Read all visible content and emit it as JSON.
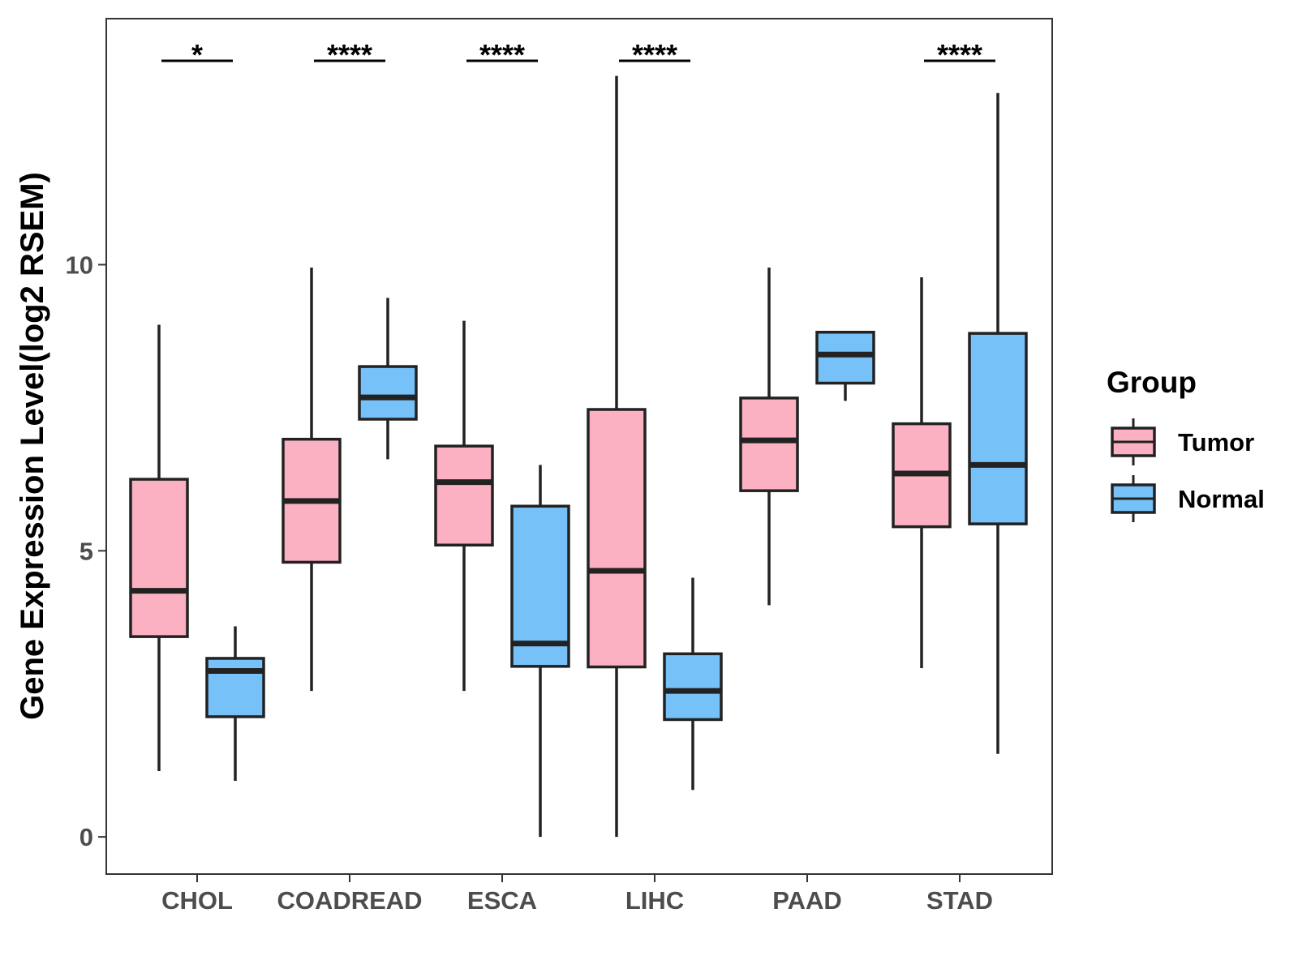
{
  "chart_data": {
    "type": "boxplot",
    "ylabel": "Gene Expression Level(log2 RSEM)",
    "xlabel": "",
    "ylim": [
      -0.65,
      14.3
    ],
    "yticks": [
      0,
      5,
      10
    ],
    "grid": false,
    "legend": {
      "title": "Group",
      "position": "right",
      "entries": [
        {
          "label": "Tumor",
          "color": "#fbb1c2"
        },
        {
          "label": "Normal",
          "color": "#76c1f8"
        }
      ]
    },
    "categories": [
      "CHOL",
      "COADREAD",
      "ESCA",
      "LIHC",
      "PAAD",
      "STAD"
    ],
    "series": [
      {
        "name": "Tumor",
        "color": "#fbb1c2",
        "boxes": [
          {
            "min": 1.15,
            "q1": 3.5,
            "median": 4.3,
            "q3": 6.25,
            "max": 8.95
          },
          {
            "min": 2.55,
            "q1": 4.8,
            "median": 5.87,
            "q3": 6.95,
            "max": 9.95
          },
          {
            "min": 2.55,
            "q1": 5.1,
            "median": 6.2,
            "q3": 6.83,
            "max": 9.02
          },
          {
            "min": 0.0,
            "q1": 2.97,
            "median": 4.65,
            "q3": 7.47,
            "max": 13.3
          },
          {
            "min": 4.05,
            "q1": 6.05,
            "median": 6.93,
            "q3": 7.67,
            "max": 9.95
          },
          {
            "min": 2.95,
            "q1": 5.42,
            "median": 6.35,
            "q3": 7.22,
            "max": 9.78
          }
        ]
      },
      {
        "name": "Normal",
        "color": "#76c1f8",
        "boxes": [
          {
            "min": 0.98,
            "q1": 2.1,
            "median": 2.9,
            "q3": 3.12,
            "max": 3.68
          },
          {
            "min": 6.6,
            "q1": 7.3,
            "median": 7.68,
            "q3": 8.22,
            "max": 9.42
          },
          {
            "min": 0.0,
            "q1": 2.98,
            "median": 3.38,
            "q3": 5.78,
            "max": 6.5
          },
          {
            "min": 0.82,
            "q1": 2.05,
            "median": 2.55,
            "q3": 3.2,
            "max": 4.53
          },
          {
            "min": 7.62,
            "q1": 7.93,
            "median": 8.43,
            "q3": 8.82,
            "max": 8.82
          },
          {
            "min": 1.45,
            "q1": 5.47,
            "median": 6.5,
            "q3": 8.8,
            "max": 13.0
          }
        ]
      }
    ],
    "significance": [
      "*",
      "****",
      "****",
      "****",
      "",
      "****"
    ]
  }
}
